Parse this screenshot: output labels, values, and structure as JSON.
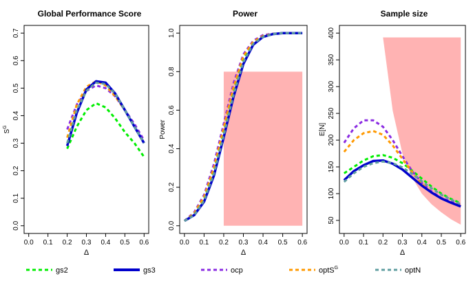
{
  "chart_data": [
    {
      "type": "line",
      "title": "Global Performance Score",
      "xlabel": "Δ",
      "ylabel": "S",
      "ylabel_superscript": "G",
      "xlim": [
        0.0,
        0.6
      ],
      "ylim": [
        0.0,
        0.7
      ],
      "xticks": [
        "0.0",
        "0.1",
        "0.2",
        "0.3",
        "0.4",
        "0.5",
        "0.6"
      ],
      "yticks": [
        "0.0",
        "0.1",
        "0.2",
        "0.3",
        "0.4",
        "0.5",
        "0.6",
        "0.7"
      ],
      "x": [
        0.2,
        0.25,
        0.3,
        0.35,
        0.4,
        0.45,
        0.5,
        0.55,
        0.6
      ],
      "series": [
        {
          "name": "gs2",
          "values": [
            0.28,
            0.36,
            0.42,
            0.445,
            0.43,
            0.39,
            0.34,
            0.3,
            0.25
          ]
        },
        {
          "name": "gs3",
          "values": [
            0.29,
            0.41,
            0.495,
            0.525,
            0.52,
            0.48,
            0.42,
            0.36,
            0.3
          ]
        },
        {
          "name": "ocp",
          "values": [
            0.35,
            0.44,
            0.49,
            0.51,
            0.5,
            0.47,
            0.42,
            0.37,
            0.31
          ]
        },
        {
          "name": "optSG",
          "values": [
            0.32,
            0.44,
            0.505,
            0.525,
            0.51,
            0.47,
            0.42,
            0.36,
            0.3
          ]
        },
        {
          "name": "optN",
          "values": [
            0.3,
            0.42,
            0.49,
            0.52,
            0.515,
            0.48,
            0.42,
            0.36,
            0.3
          ]
        }
      ]
    },
    {
      "type": "line",
      "title": "Power",
      "xlabel": "Δ",
      "ylabel": "Power",
      "xlim": [
        0.0,
        0.6
      ],
      "ylim": [
        0.0,
        1.0
      ],
      "xticks": [
        "0.0",
        "0.1",
        "0.2",
        "0.3",
        "0.4",
        "0.5",
        "0.6"
      ],
      "yticks": [
        "0.0",
        "0.2",
        "0.4",
        "0.6",
        "0.8",
        "1.0"
      ],
      "shaded_region": {
        "x": [
          0.2,
          0.6
        ],
        "y": [
          0.0,
          0.8
        ]
      },
      "x": [
        0.0,
        0.05,
        0.1,
        0.15,
        0.2,
        0.25,
        0.3,
        0.35,
        0.4,
        0.45,
        0.5,
        0.55,
        0.6
      ],
      "series": [
        {
          "name": "gs2",
          "values": [
            0.025,
            0.06,
            0.14,
            0.29,
            0.49,
            0.7,
            0.87,
            0.95,
            0.985,
            0.995,
            1.0,
            1.0,
            1.0
          ]
        },
        {
          "name": "gs3",
          "values": [
            0.025,
            0.055,
            0.125,
            0.26,
            0.46,
            0.67,
            0.84,
            0.94,
            0.98,
            0.995,
            1.0,
            1.0,
            1.0
          ]
        },
        {
          "name": "ocp",
          "values": [
            0.025,
            0.07,
            0.16,
            0.32,
            0.53,
            0.74,
            0.89,
            0.96,
            0.99,
            0.997,
            1.0,
            1.0,
            1.0
          ]
        },
        {
          "name": "optSG",
          "values": [
            0.025,
            0.065,
            0.15,
            0.3,
            0.51,
            0.72,
            0.88,
            0.955,
            0.985,
            0.996,
            1.0,
            1.0,
            1.0
          ]
        },
        {
          "name": "optN",
          "values": [
            0.025,
            0.055,
            0.13,
            0.27,
            0.47,
            0.68,
            0.85,
            0.945,
            0.98,
            0.995,
            1.0,
            1.0,
            1.0
          ]
        }
      ]
    },
    {
      "type": "line",
      "title": "Sample size",
      "xlabel": "Δ",
      "ylabel": "E[N]",
      "xlim": [
        0.0,
        0.6
      ],
      "ylim": [
        40,
        400
      ],
      "xticks": [
        "0.0",
        "0.1",
        "0.2",
        "0.3",
        "0.4",
        "0.5",
        "0.6"
      ],
      "yticks": [
        "50",
        "100",
        "150",
        "200",
        "250",
        "300",
        "350",
        "400"
      ],
      "shaded_region": {
        "x": [
          0.2,
          0.25,
          0.3,
          0.35,
          0.4,
          0.45,
          0.5,
          0.55,
          0.6
        ],
        "lower": [
          392,
          255,
          175,
          130,
          100,
          80,
          65,
          52,
          42
        ],
        "upper": 392
      },
      "x": [
        0.0,
        0.05,
        0.1,
        0.15,
        0.2,
        0.25,
        0.3,
        0.35,
        0.4,
        0.45,
        0.5,
        0.55,
        0.6
      ],
      "series": [
        {
          "name": "gs2",
          "values": [
            138,
            150,
            162,
            170,
            172,
            167,
            157,
            143,
            128,
            113,
            100,
            90,
            82
          ]
        },
        {
          "name": "gs3",
          "values": [
            125,
            142,
            153,
            161,
            162,
            156,
            145,
            130,
            115,
            102,
            91,
            83,
            76
          ]
        },
        {
          "name": "ocp",
          "values": [
            195,
            222,
            237,
            237,
            225,
            200,
            170,
            142,
            120,
            104,
            92,
            85,
            79
          ]
        },
        {
          "name": "optSG",
          "values": [
            178,
            200,
            213,
            217,
            210,
            190,
            165,
            140,
            118,
            102,
            91,
            83,
            77
          ]
        },
        {
          "name": "optN",
          "values": [
            122,
            138,
            150,
            157,
            160,
            157,
            149,
            137,
            123,
            110,
            98,
            89,
            80
          ]
        }
      ]
    }
  ],
  "legend": {
    "placement": "bottom",
    "items": [
      {
        "label": "gs2",
        "sup": "",
        "color": "#00ee00",
        "dash": "dashed",
        "bold": false
      },
      {
        "label": "gs3",
        "sup": "",
        "color": "#0000cc",
        "dash": "solid",
        "bold": true
      },
      {
        "label": "ocp",
        "sup": "",
        "color": "#8a2be2",
        "dash": "dashed",
        "bold": false
      },
      {
        "label": "optS",
        "sup": "G",
        "color": "#ff9900",
        "dash": "dashed",
        "bold": false
      },
      {
        "label": "optN",
        "sup": "",
        "color": "#5f9ea0",
        "dash": "dashed",
        "bold": false
      }
    ]
  },
  "colors": {
    "shade": "#ffb3b3",
    "gs2": "#00ee00",
    "gs3": "#0000cc",
    "ocp": "#8a2be2",
    "optSG": "#ff9900",
    "optN": "#5f9ea0"
  }
}
